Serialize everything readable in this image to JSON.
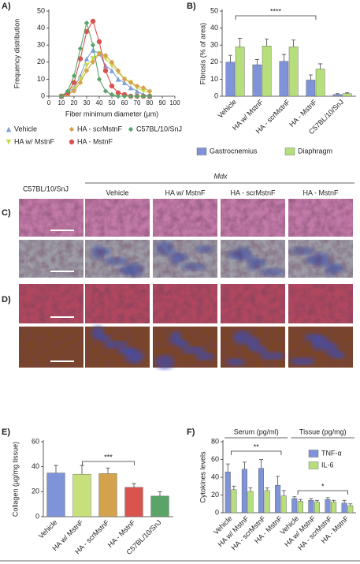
{
  "chart_data": [
    {
      "type": "line",
      "panel": "A)",
      "ylabel": "Frequency distribution",
      "xlabel": "Fiber minimum diameter (µm)",
      "x": [
        10,
        15,
        20,
        25,
        30,
        35,
        40,
        45,
        50,
        55,
        60,
        65,
        70,
        75,
        80
      ],
      "xlim": [
        0,
        100
      ],
      "xticks": [
        0,
        10,
        20,
        30,
        40,
        50,
        60,
        70,
        80,
        90,
        100
      ],
      "ylim": [
        0,
        50
      ],
      "yticks": [
        0,
        10,
        20,
        30,
        40,
        50
      ],
      "series": [
        {
          "name": "Vehicle",
          "color": "#7f9fd6",
          "marker": "triangle",
          "values": [
            0,
            2,
            5,
            12,
            22,
            27,
            25,
            18,
            15,
            10,
            8,
            5,
            3,
            1,
            0
          ]
        },
        {
          "name": "HA w/ MstnF",
          "color": "#c8d84a",
          "marker": "triangle-down",
          "values": [
            0,
            1,
            4,
            10,
            18,
            22,
            25,
            22,
            18,
            14,
            10,
            8,
            5,
            3,
            2
          ]
        },
        {
          "name": "HA - scrMstnF",
          "color": "#d4a24c",
          "marker": "diamond",
          "values": [
            0,
            1,
            3,
            8,
            15,
            20,
            25,
            24,
            20,
            15,
            10,
            8,
            6,
            5,
            3
          ]
        },
        {
          "name": "HA - MstnF",
          "color": "#d9534f",
          "marker": "circle",
          "values": [
            0,
            2,
            8,
            22,
            38,
            44,
            32,
            15,
            6,
            2,
            1,
            0,
            0,
            0,
            0
          ]
        },
        {
          "name": "C57BL/10/SnJ",
          "color": "#5aa46a",
          "marker": "diamond",
          "values": [
            0,
            3,
            12,
            28,
            43,
            30,
            10,
            3,
            1,
            0,
            0,
            0,
            0,
            0,
            0
          ]
        }
      ]
    },
    {
      "type": "bar",
      "panel": "B)",
      "ylabel": "Fibrosis (% of area)",
      "ylim": [
        0,
        50
      ],
      "yticks": [
        0,
        10,
        20,
        30,
        40,
        50
      ],
      "categories": [
        "Vehicle",
        "HA w/ MstnF",
        "HA - scrMstnF",
        "HA - MstnF",
        "C57BL/10/SnJ"
      ],
      "annotations": [
        "****"
      ],
      "series": [
        {
          "name": "Gastrocnemius",
          "color": "#7f93d8",
          "values": [
            20,
            18.5,
            20.5,
            9.5,
            1
          ],
          "errors": [
            4,
            3,
            4,
            3,
            0.5
          ]
        },
        {
          "name": "Diaphragm",
          "color": "#b6df7c",
          "values": [
            29,
            29.5,
            29,
            16,
            1.5
          ],
          "errors": [
            5,
            4,
            4,
            3,
            0.5
          ]
        }
      ]
    },
    {
      "type": "bar",
      "panel": "E)",
      "ylabel": "Collagen (µg/mg tissue)",
      "ylim": [
        0,
        60
      ],
      "yticks": [
        0,
        20,
        40,
        60
      ],
      "categories": [
        "Vehicle",
        "HA w/ MstnF",
        "HA - scrMstnF",
        "HA - MstnF",
        "C57BL/10/SnJ"
      ],
      "annotations": [
        "***"
      ],
      "values": [
        35,
        34,
        34.5,
        23.5,
        16.5
      ],
      "errors": [
        6,
        7,
        4.5,
        3,
        3.5
      ],
      "colors": [
        "#7f93d8",
        "#c8e07c",
        "#d4a24c",
        "#d9534f",
        "#5aa46a"
      ]
    },
    {
      "type": "bar",
      "panel": "F)",
      "ylabel": "Cytokines levels",
      "ylim": [
        0,
        80
      ],
      "yticks": [
        0,
        20,
        40,
        60,
        80
      ],
      "groups": [
        "Serum (pg/ml)",
        "Tissue (pg/mg)"
      ],
      "categories": [
        "Vehicle",
        "HA w/ MstnF",
        "HA - scrMstnF",
        "HA - MstnF",
        "Vehicle",
        "HA w/ MstnF",
        "HA - scrMstnF",
        "HA - MstnF"
      ],
      "annotations": [
        "**",
        "*"
      ],
      "series": [
        {
          "name": "TNF-α",
          "color": "#7f93d8",
          "values": [
            46,
            49,
            50,
            31,
            16,
            14,
            15,
            11
          ],
          "errors": [
            9,
            8,
            10,
            10,
            2,
            2,
            2,
            3
          ]
        },
        {
          "name": "IL-6",
          "color": "#b6df7c",
          "values": [
            26,
            24,
            25,
            19,
            13,
            12,
            12,
            8
          ],
          "errors": [
            4,
            4,
            3,
            6,
            2,
            2,
            2,
            2
          ]
        }
      ]
    }
  ],
  "histology": {
    "panels": [
      "C)",
      "D)"
    ],
    "control": "C57BL/10/SnJ",
    "group": "Mdx",
    "columns": [
      "Vehicle",
      "HA w/ MstnF",
      "HA - scrMstnF",
      "HA - MstnF"
    ]
  }
}
